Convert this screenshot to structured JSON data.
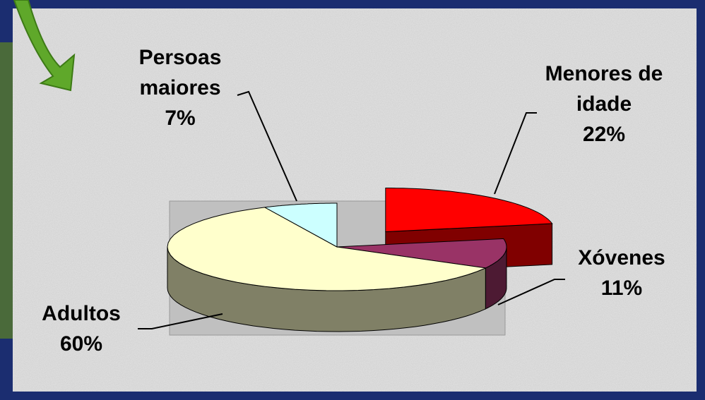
{
  "chart_data": {
    "type": "pie",
    "categories": [
      "Menores de idade",
      "Xóvenes",
      "Adultos",
      "Persoas maiores"
    ],
    "values": [
      22,
      11,
      60,
      7
    ],
    "value_labels": [
      "22%",
      "11%",
      "60%",
      "7%"
    ],
    "colors": [
      "#ff0000",
      "#993366",
      "#ffffcc",
      "#ccffff"
    ],
    "explode": [
      true,
      false,
      false,
      false
    ]
  }
}
